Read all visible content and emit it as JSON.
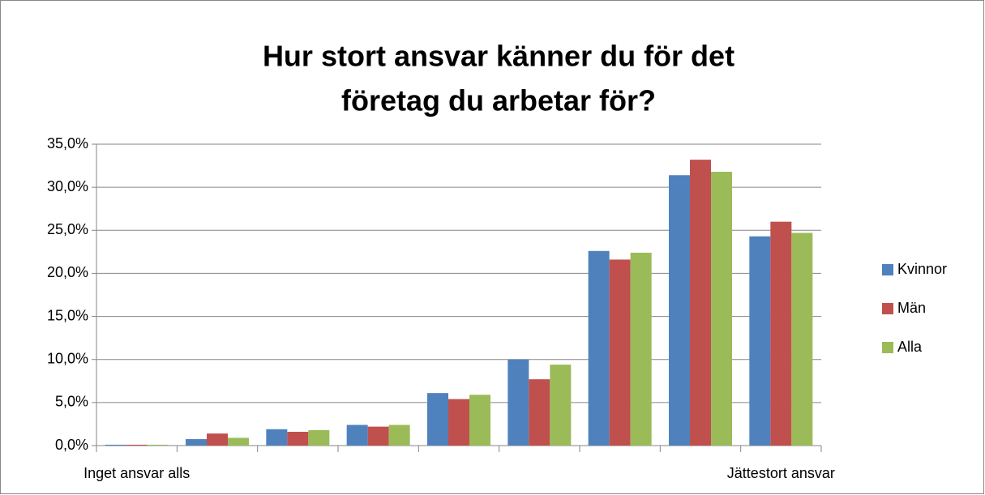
{
  "chart_data": {
    "type": "bar",
    "title": [
      "Hur stort ansvar känner du för det",
      "företag du arbetar för?"
    ],
    "categories": [
      "Inget ansvar alls",
      null,
      null,
      null,
      null,
      null,
      null,
      null,
      "Jättestort ansvar"
    ],
    "series": [
      {
        "name": "Kvinnor",
        "color": "#4f81bd",
        "values": [
          0.1,
          0.75,
          1.9,
          2.4,
          6.1,
          10.0,
          22.6,
          31.4,
          24.3
        ]
      },
      {
        "name": "Män",
        "color": "#c0504d",
        "values": [
          0.1,
          1.4,
          1.6,
          2.2,
          5.4,
          7.7,
          21.6,
          33.2,
          26.0
        ]
      },
      {
        "name": "Alla",
        "color": "#9bbb59",
        "values": [
          0.1,
          0.9,
          1.8,
          2.4,
          5.9,
          9.4,
          22.4,
          31.8,
          24.7
        ]
      }
    ],
    "ylim": [
      0,
      35
    ],
    "yticks": [
      {
        "value": 0,
        "label": "0,0%"
      },
      {
        "value": 5,
        "label": "5,0%"
      },
      {
        "value": 10,
        "label": "10,0%"
      },
      {
        "value": 15,
        "label": "15,0%"
      },
      {
        "value": 20,
        "label": "20,0%"
      },
      {
        "value": 25,
        "label": "25,0%"
      },
      {
        "value": 30,
        "label": "30,0%"
      },
      {
        "value": 35,
        "label": "35,0%"
      }
    ],
    "grid": true,
    "legend": "right"
  }
}
